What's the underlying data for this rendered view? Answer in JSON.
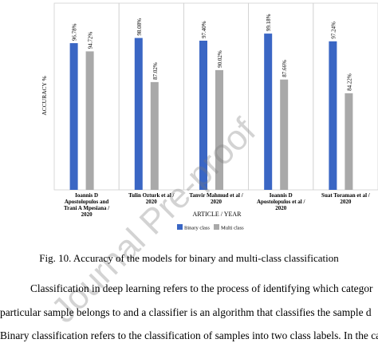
{
  "chart_data": {
    "type": "bar",
    "title": "",
    "xlabel": "ARTICLE / YEAR",
    "ylabel": "ACCURACY %",
    "ylim": [
      0,
      100
    ],
    "grid": false,
    "legend_position": "bottom-center",
    "categories": [
      [
        "Ioannis D",
        "Apostolopulos and",
        "Trani A Mpesiana /",
        "2020"
      ],
      [
        "Tulin Ozturk et al /",
        "2020"
      ],
      [
        "Tanvir Mahmud et al /",
        "2020"
      ],
      [
        "Ioannis D",
        "Apostolopulos et al /",
        "2020"
      ],
      [
        "Suat Toraman et al /",
        "2020"
      ]
    ],
    "series": [
      {
        "name": "Binary class",
        "color": "#3a66c4",
        "values": [
          96.78,
          98.08,
          97.4,
          99.18,
          97.24
        ],
        "labels": [
          "96.78%",
          "98.08%",
          "97.40%",
          "99.18%",
          "97.24%"
        ]
      },
      {
        "name": "Multi class",
        "color": "#a9a9a9",
        "values": [
          94.72,
          87.02,
          90.02,
          87.66,
          84.22
        ],
        "labels": [
          "94.72%",
          "87.02%",
          "90.02%",
          "87.66%",
          "84.22%"
        ]
      }
    ]
  },
  "caption": "Fig. 10. Accuracy of the models for binary and multi-class classification",
  "paragraph": [
    "Classification in deep learning refers to the process of identifying which categor",
    "particular sample belongs to and a classifier is an algorithm that classifies the sample d",
    "Binary classification refers to the classification of samples into two class labels. In the cas"
  ],
  "watermark": "Journal Pre-proof"
}
